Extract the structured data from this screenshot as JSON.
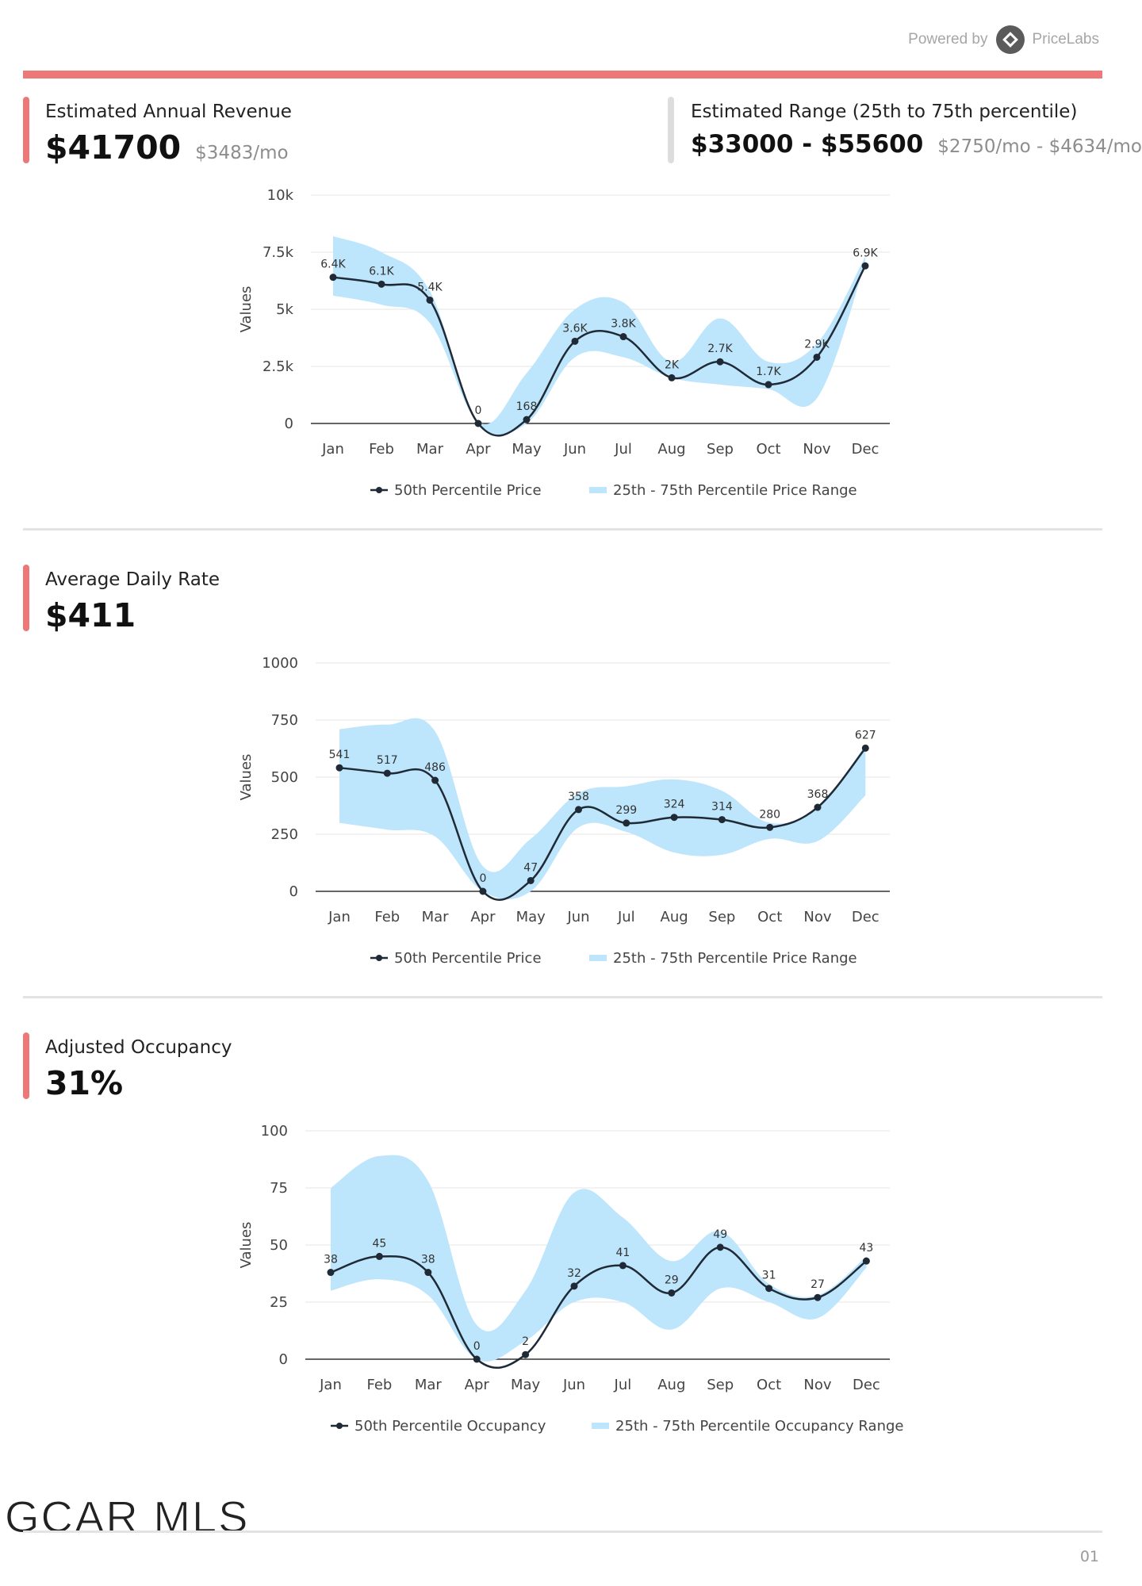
{
  "header": {
    "powered_by": "Powered by",
    "brand": "PriceLabs"
  },
  "revenue": {
    "label": "Estimated Annual Revenue",
    "value": "$41700",
    "monthly": "$3483/mo"
  },
  "range": {
    "label": "Estimated Range (25th to 75th percentile)",
    "value": "$33000 - $55600",
    "monthly": "$2750/mo - $4634/mo"
  },
  "adr": {
    "label": "Average Daily Rate",
    "value": "$411"
  },
  "occupancy": {
    "label": "Adjusted Occupancy",
    "value": "31%"
  },
  "footer": {
    "logo_text": "GCAR MLS",
    "page": "01"
  },
  "colors": {
    "accent": "#ee7777",
    "band": "#bde5fb",
    "line": "#1f2a36",
    "neutral": "#dddddd"
  },
  "chart_data": [
    {
      "type": "line",
      "categories": [
        "Jan",
        "Feb",
        "Mar",
        "Apr",
        "May",
        "Jun",
        "Jul",
        "Aug",
        "Sep",
        "Oct",
        "Nov",
        "Dec"
      ],
      "ylabel": "Values",
      "ylim": [
        0,
        10000
      ],
      "yticks": [
        0,
        2500,
        5000,
        7500,
        10000
      ],
      "ytick_labels": [
        "0",
        "2.5k",
        "5k",
        "7.5k",
        "10k"
      ],
      "series": [
        {
          "name": "50th Percentile Price",
          "values": [
            6400,
            6100,
            5400,
            0,
            168,
            3600,
            3800,
            2000,
            2700,
            1700,
            2900,
            6900
          ],
          "labels": [
            "6.4K",
            "6.1K",
            "5.4K",
            "0",
            "168",
            "3.6K",
            "3.8K",
            "2K",
            "2.7K",
            "1.7K",
            "2.9K",
            "6.9K"
          ]
        },
        {
          "name": "25th - 75th Percentile Price Range",
          "lower": [
            5600,
            5200,
            4400,
            0,
            0,
            2900,
            2900,
            2000,
            1700,
            1500,
            1100,
            7000
          ],
          "upper": [
            8200,
            7500,
            5800,
            100,
            2200,
            5000,
            5300,
            2700,
            4600,
            2700,
            3500,
            7300
          ]
        }
      ],
      "legend": "bottom"
    },
    {
      "type": "line",
      "categories": [
        "Jan",
        "Feb",
        "Mar",
        "Apr",
        "May",
        "Jun",
        "Jul",
        "Aug",
        "Sep",
        "Oct",
        "Nov",
        "Dec"
      ],
      "ylabel": "Values",
      "ylim": [
        0,
        1000
      ],
      "yticks": [
        0,
        250,
        500,
        750,
        1000
      ],
      "ytick_labels": [
        "0",
        "250",
        "500",
        "750",
        "1000"
      ],
      "series": [
        {
          "name": "50th Percentile Price",
          "values": [
            541,
            517,
            486,
            0,
            47,
            358,
            299,
            324,
            314,
            280,
            368,
            627
          ],
          "labels": [
            "541",
            "517",
            "486",
            "0",
            "47",
            "358",
            "299",
            "324",
            "314",
            "280",
            "368",
            "627"
          ]
        },
        {
          "name": "25th - 75th Percentile Price Range",
          "lower": [
            300,
            270,
            240,
            0,
            0,
            280,
            260,
            170,
            160,
            230,
            220,
            420
          ],
          "upper": [
            710,
            730,
            700,
            110,
            230,
            430,
            460,
            490,
            440,
            300,
            370,
            640
          ]
        }
      ],
      "legend": "bottom"
    },
    {
      "type": "line",
      "categories": [
        "Jan",
        "Feb",
        "Mar",
        "Apr",
        "May",
        "Jun",
        "Jul",
        "Aug",
        "Sep",
        "Oct",
        "Nov",
        "Dec"
      ],
      "ylabel": "Values",
      "ylim": [
        0,
        100
      ],
      "yticks": [
        0,
        25,
        50,
        75,
        100
      ],
      "ytick_labels": [
        "0",
        "25",
        "50",
        "75",
        "100"
      ],
      "series": [
        {
          "name": "50th Percentile Occupancy",
          "values": [
            38,
            45,
            38,
            0,
            2,
            32,
            41,
            29,
            49,
            31,
            27,
            43
          ],
          "labels": [
            "38",
            "45",
            "38",
            "0",
            "2",
            "32",
            "41",
            "29",
            "49",
            "31",
            "27",
            "43"
          ]
        },
        {
          "name": "25th - 75th Percentile Occupancy Range",
          "lower": [
            30,
            35,
            28,
            0,
            8,
            25,
            25,
            13,
            31,
            25,
            18,
            40
          ],
          "upper": [
            75,
            89,
            78,
            15,
            30,
            73,
            62,
            43,
            56,
            33,
            28,
            45
          ]
        }
      ],
      "legend": "bottom"
    }
  ]
}
